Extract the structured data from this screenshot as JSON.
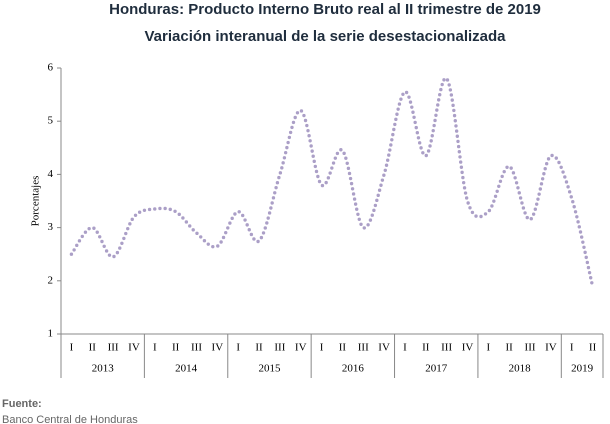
{
  "chart_data": {
    "type": "line",
    "title": "Honduras: Producto Interno Bruto real al II trimestre de 2019",
    "subtitle": "Variación interanual de la serie desestacionalizada",
    "y_label": "Porcentajes",
    "categories": [
      "I",
      "II",
      "III",
      "IV",
      "I",
      "II",
      "III",
      "IV",
      "I",
      "II",
      "III",
      "IV",
      "I",
      "II",
      "III",
      "IV",
      "I",
      "II",
      "III",
      "IV",
      "I",
      "II",
      "III",
      "IV",
      "I",
      "II"
    ],
    "groups": [
      "2013",
      "2014",
      "2015",
      "2016",
      "2017",
      "2018",
      "2019"
    ],
    "series": [
      {
        "name": "PIB",
        "color": "#ab9fc7",
        "values": [
          2.5,
          3.0,
          2.45,
          3.2,
          3.35,
          3.3,
          2.9,
          2.65,
          3.3,
          2.75,
          4.0,
          5.2,
          3.8,
          4.45,
          3.0,
          4.0,
          5.55,
          4.35,
          5.8,
          3.5,
          3.3,
          4.15,
          3.15,
          4.35,
          3.55,
          1.9
        ]
      }
    ],
    "ylim": [
      1,
      6
    ],
    "yticks": [
      1,
      2,
      3,
      4,
      5,
      6
    ],
    "source_label": "Fuente:",
    "source": "Banco Central de Honduras"
  }
}
